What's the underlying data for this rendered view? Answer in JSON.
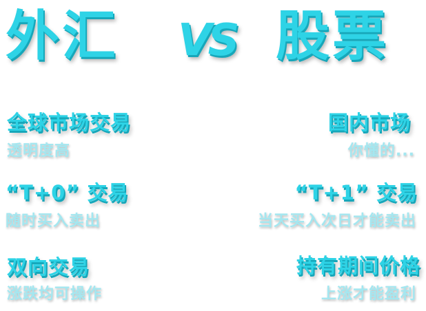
{
  "title": {
    "left": "外汇",
    "vs": "VS",
    "right": "股票"
  },
  "features": [
    {
      "left": {
        "heading": "全球市场交易",
        "sub": "透明度高"
      },
      "right": {
        "heading": "国内市场",
        "sub": "你懂的..."
      }
    },
    {
      "left": {
        "heading": "“T+0” 交易",
        "sub": "随时买入卖出"
      },
      "right": {
        "heading": "“T+1” 交易",
        "sub": "当天买入次日才能卖出"
      }
    },
    {
      "left": {
        "heading": "双向交易",
        "sub": "涨跌均可操作"
      },
      "right": {
        "heading": "持有期间价格",
        "sub": "上涨才能盈利"
      }
    }
  ],
  "colors": {
    "accent": "#2ed3e6",
    "accent_shadow": "#16a7ba",
    "subtext": "#a4e7f0",
    "background": "#ffffff"
  }
}
